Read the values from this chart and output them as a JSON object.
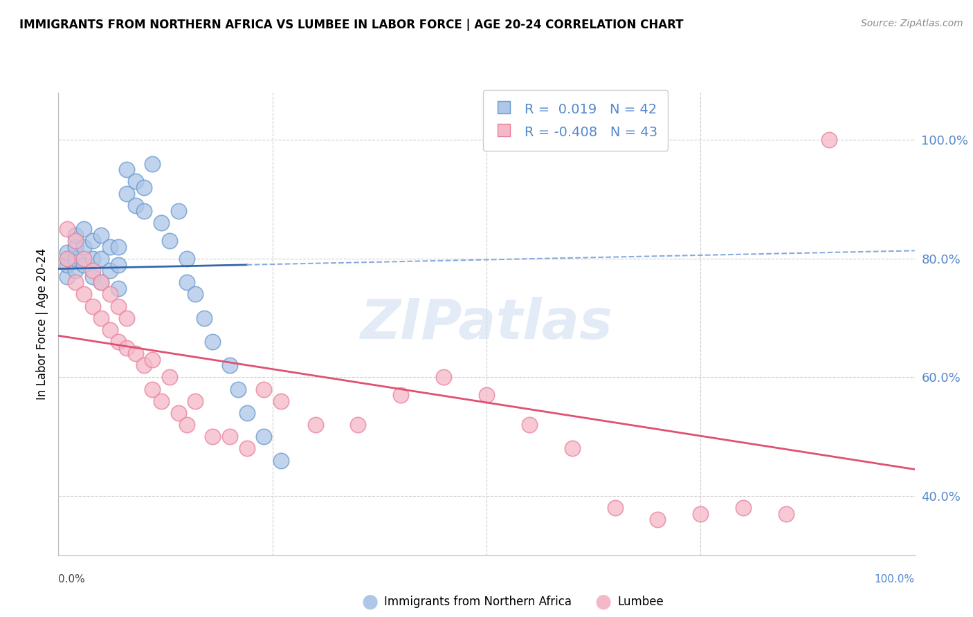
{
  "title": "IMMIGRANTS FROM NORTHERN AFRICA VS LUMBEE IN LABOR FORCE | AGE 20-24 CORRELATION CHART",
  "source": "Source: ZipAtlas.com",
  "ylabel": "In Labor Force | Age 20-24",
  "xlim": [
    0.0,
    1.0
  ],
  "ylim": [
    0.3,
    1.08
  ],
  "yticks": [
    0.4,
    0.6,
    0.8,
    1.0
  ],
  "ytick_labels": [
    "40.0%",
    "60.0%",
    "80.0%",
    "100.0%"
  ],
  "r_blue": 0.019,
  "n_blue": 42,
  "r_pink": -0.408,
  "n_pink": 43,
  "blue_fill": "#aec6e8",
  "blue_edge": "#6699cc",
  "pink_fill": "#f5b8c8",
  "pink_edge": "#e8809a",
  "blue_trend_solid": "#3366aa",
  "blue_trend_dash": "#88aadd",
  "pink_trend": "#e05070",
  "legend_label_blue": "Immigrants from Northern Africa",
  "legend_label_pink": "Lumbee",
  "watermark": "ZIPatlas",
  "blue_x": [
    0.01,
    0.01,
    0.01,
    0.01,
    0.02,
    0.02,
    0.02,
    0.02,
    0.03,
    0.03,
    0.03,
    0.04,
    0.04,
    0.04,
    0.05,
    0.05,
    0.05,
    0.06,
    0.06,
    0.07,
    0.07,
    0.07,
    0.08,
    0.08,
    0.09,
    0.09,
    0.1,
    0.1,
    0.11,
    0.12,
    0.13,
    0.14,
    0.15,
    0.15,
    0.16,
    0.17,
    0.18,
    0.2,
    0.21,
    0.22,
    0.24,
    0.26
  ],
  "blue_y": [
    0.77,
    0.79,
    0.8,
    0.81,
    0.78,
    0.8,
    0.82,
    0.84,
    0.79,
    0.82,
    0.85,
    0.77,
    0.8,
    0.83,
    0.76,
    0.8,
    0.84,
    0.78,
    0.82,
    0.75,
    0.79,
    0.82,
    0.91,
    0.95,
    0.89,
    0.93,
    0.88,
    0.92,
    0.96,
    0.86,
    0.83,
    0.88,
    0.8,
    0.76,
    0.74,
    0.7,
    0.66,
    0.62,
    0.58,
    0.54,
    0.5,
    0.46
  ],
  "pink_x": [
    0.01,
    0.01,
    0.02,
    0.02,
    0.03,
    0.03,
    0.04,
    0.04,
    0.05,
    0.05,
    0.06,
    0.06,
    0.07,
    0.07,
    0.08,
    0.08,
    0.09,
    0.1,
    0.11,
    0.11,
    0.12,
    0.13,
    0.14,
    0.15,
    0.16,
    0.18,
    0.2,
    0.22,
    0.24,
    0.26,
    0.3,
    0.35,
    0.4,
    0.45,
    0.5,
    0.55,
    0.6,
    0.65,
    0.7,
    0.75,
    0.8,
    0.85,
    0.9
  ],
  "pink_y": [
    0.8,
    0.85,
    0.76,
    0.83,
    0.74,
    0.8,
    0.72,
    0.78,
    0.7,
    0.76,
    0.68,
    0.74,
    0.66,
    0.72,
    0.65,
    0.7,
    0.64,
    0.62,
    0.58,
    0.63,
    0.56,
    0.6,
    0.54,
    0.52,
    0.56,
    0.5,
    0.5,
    0.48,
    0.58,
    0.56,
    0.52,
    0.52,
    0.57,
    0.6,
    0.57,
    0.52,
    0.48,
    0.38,
    0.36,
    0.37,
    0.38,
    0.37,
    1.0
  ],
  "background_color": "#ffffff",
  "grid_color": "#cccccc"
}
